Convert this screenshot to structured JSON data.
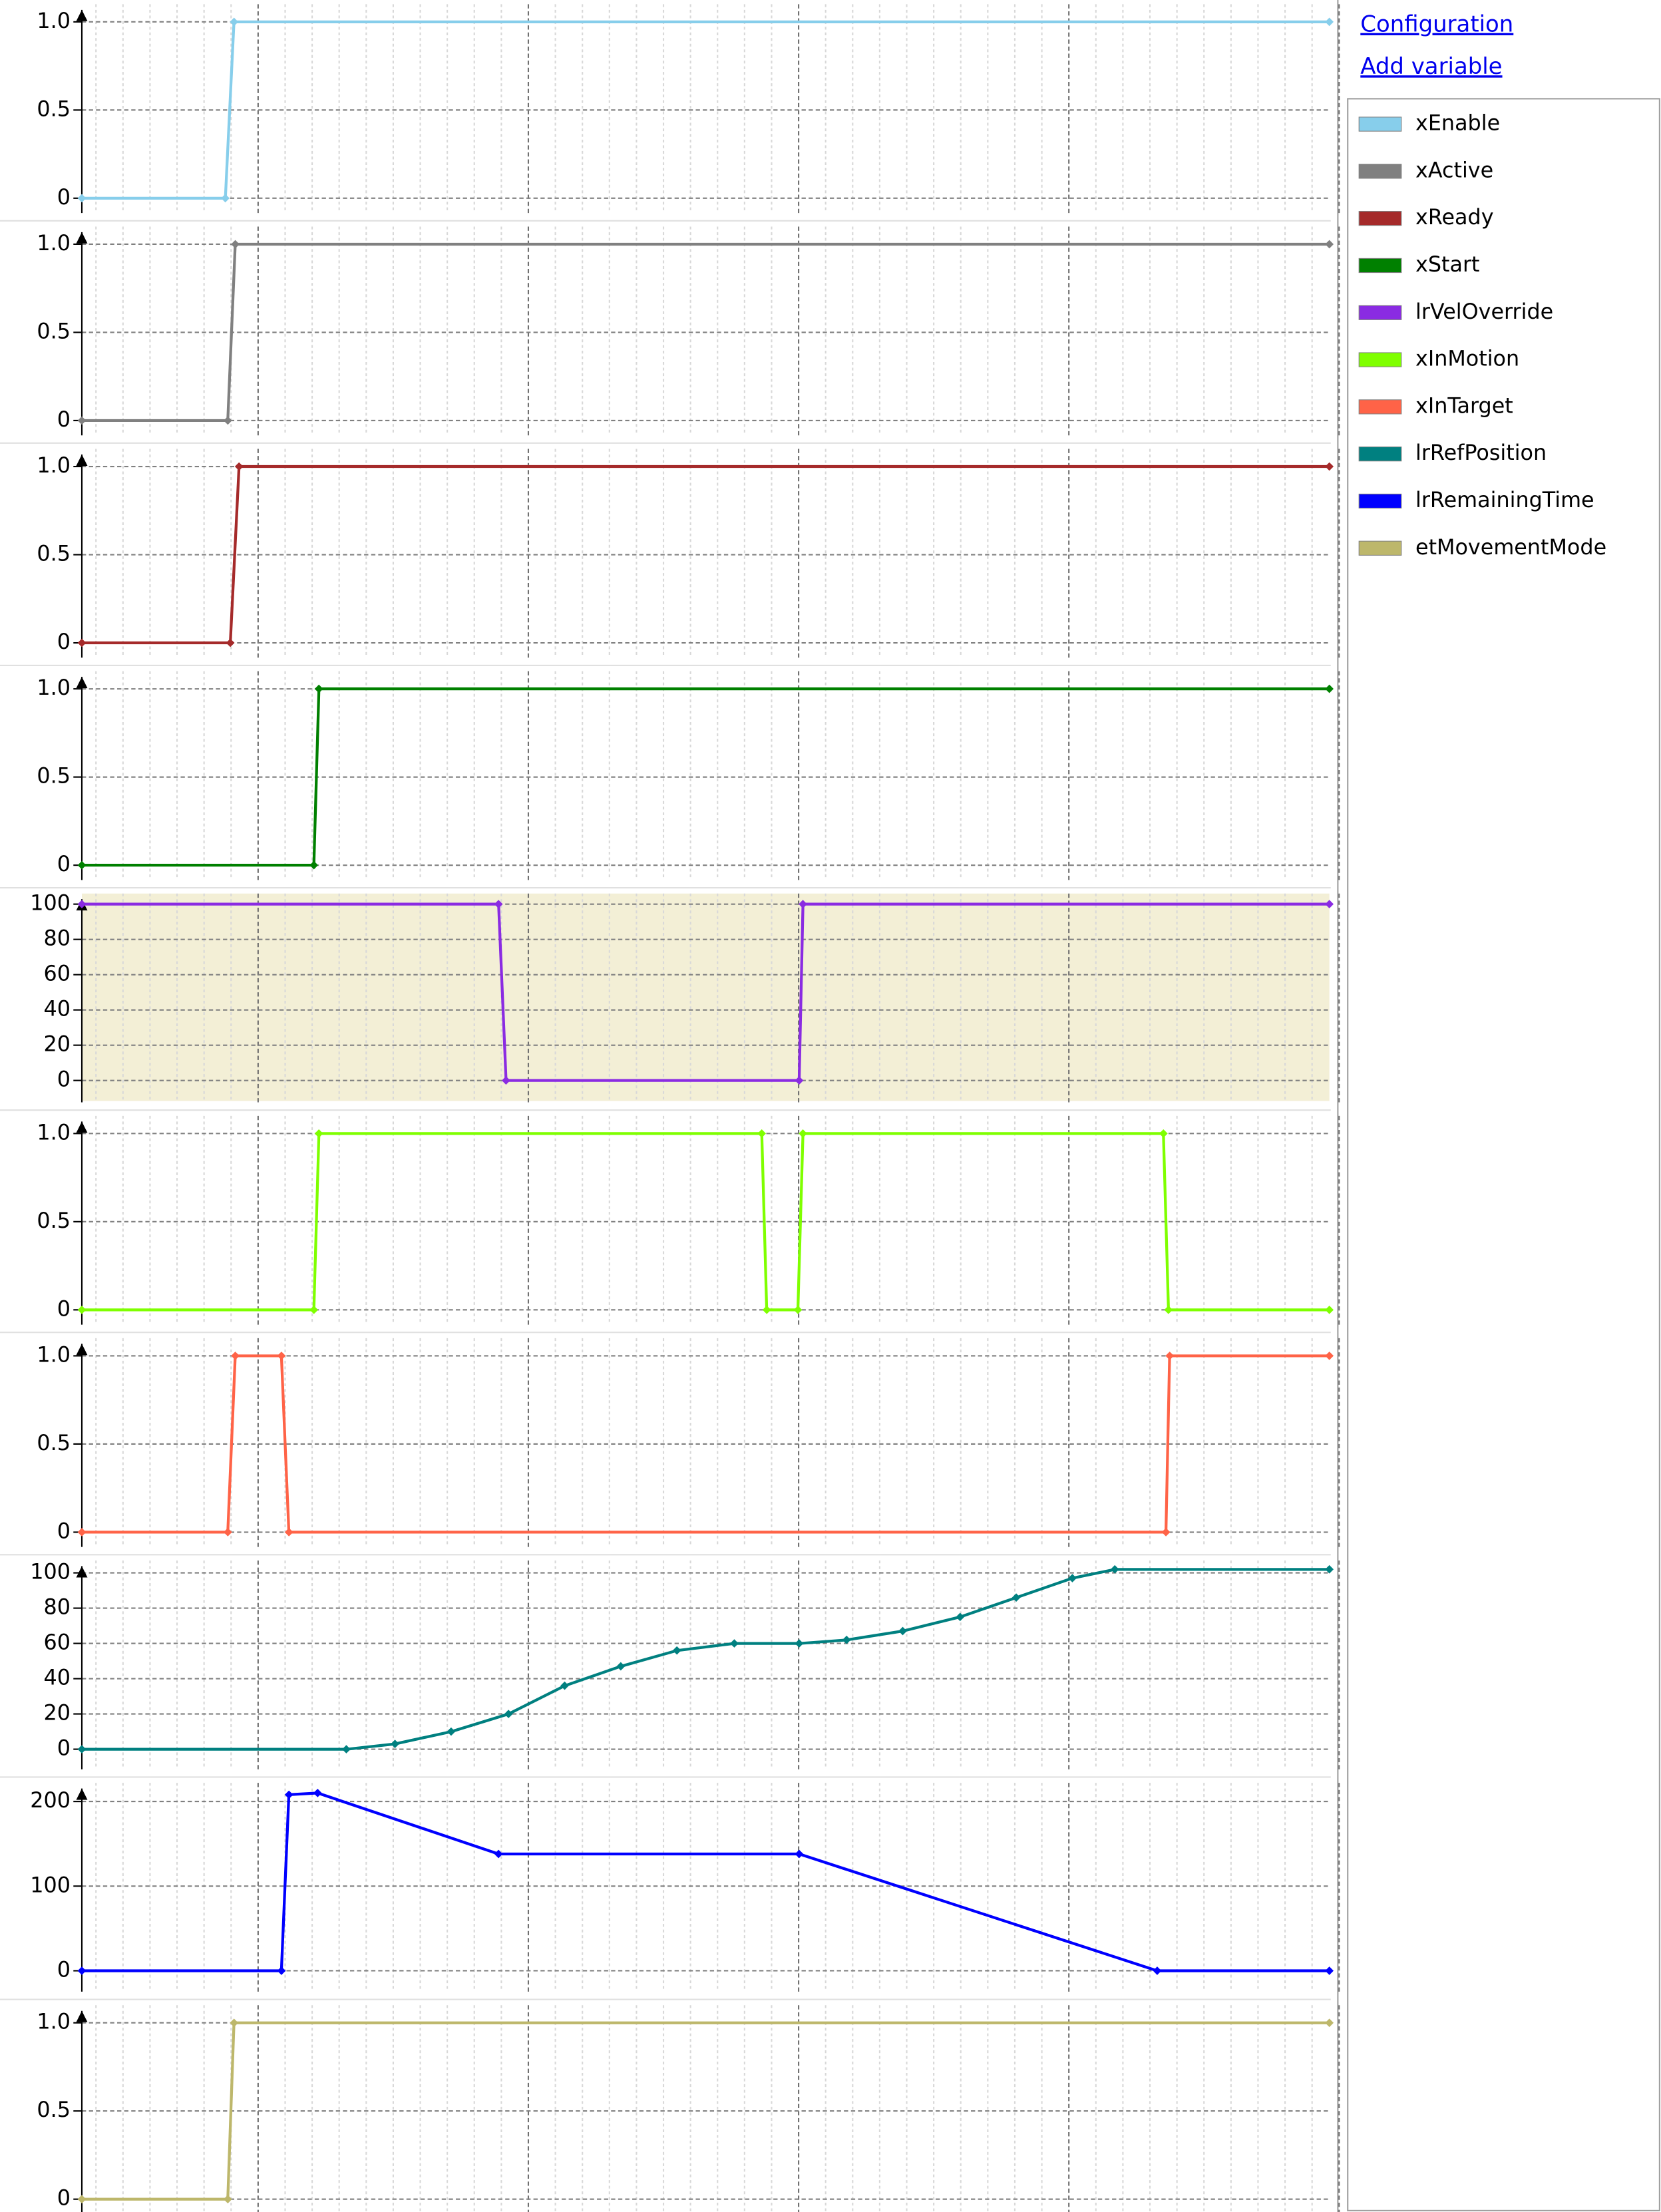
{
  "links": [
    "Configuration",
    "Add variable"
  ],
  "chart_data": [
    {
      "type": "line",
      "xlim": [
        0,
        100
      ],
      "x": [
        0,
        11.5,
        12.2,
        100
      ],
      "ylim": [
        -0.1,
        1.1
      ],
      "yticks": [
        0,
        0.5,
        {
          "value": 1,
          "label": "1.0"
        }
      ],
      "series": [
        {
          "name": "xEnable",
          "color": "#87ceeb",
          "values": [
            0,
            0,
            1,
            1
          ]
        }
      ]
    },
    {
      "type": "line",
      "xlim": [
        0,
        100
      ],
      "x": [
        0,
        11.7,
        12.3,
        100
      ],
      "ylim": [
        -0.1,
        1.1
      ],
      "yticks": [
        0,
        0.5,
        {
          "value": 1,
          "label": "1.0"
        }
      ],
      "series": [
        {
          "name": "xActive",
          "color": "#808080",
          "values": [
            0,
            0,
            1,
            1
          ]
        }
      ]
    },
    {
      "type": "line",
      "xlim": [
        0,
        100
      ],
      "x": [
        0,
        11.9,
        12.6,
        100
      ],
      "ylim": [
        -0.1,
        1.1
      ],
      "yticks": [
        0,
        0.5,
        {
          "value": 1,
          "label": "1.0"
        }
      ],
      "series": [
        {
          "name": "xReady",
          "color": "#a52a2a",
          "values": [
            0,
            0,
            1,
            1
          ]
        }
      ]
    },
    {
      "type": "line",
      "xlim": [
        0,
        100
      ],
      "x": [
        0,
        18.6,
        19.0,
        100
      ],
      "ylim": [
        -0.1,
        1.1
      ],
      "yticks": [
        0,
        0.5,
        {
          "value": 1,
          "label": "1.0"
        }
      ],
      "series": [
        {
          "name": "xStart",
          "color": "#008000",
          "values": [
            0,
            0,
            1,
            1
          ]
        }
      ]
    },
    {
      "type": "line",
      "xlim": [
        0,
        100
      ],
      "x": [
        0,
        33.4,
        34.0,
        57.5,
        57.8,
        100
      ],
      "ylim": [
        -14,
        106
      ],
      "yticks": [
        0,
        20,
        40,
        60,
        80,
        100
      ],
      "series": [
        {
          "name": "lrVelOverride",
          "color": "#8a2be2",
          "values": [
            100,
            100,
            0,
            0,
            100,
            100
          ]
        }
      ]
    },
    {
      "type": "line",
      "xlim": [
        0,
        100
      ],
      "x": [
        0,
        18.6,
        19.0,
        54.5,
        54.9,
        57.4,
        57.8,
        86.7,
        87.1,
        100
      ],
      "ylim": [
        -0.1,
        1.1
      ],
      "yticks": [
        0,
        0.5,
        {
          "value": 1,
          "label": "1.0"
        }
      ],
      "series": [
        {
          "name": "xInMotion",
          "color": "#7fff00",
          "values": [
            0,
            0,
            1,
            1,
            0,
            0,
            1,
            1,
            0,
            0
          ]
        }
      ]
    },
    {
      "type": "line",
      "xlim": [
        0,
        100
      ],
      "x": [
        0,
        11.7,
        12.3,
        16.0,
        16.6,
        86.9,
        87.2,
        100
      ],
      "ylim": [
        -0.1,
        1.1
      ],
      "yticks": [
        0,
        0.5,
        {
          "value": 1,
          "label": "1.0"
        }
      ],
      "series": [
        {
          "name": "xInTarget",
          "color": "#ff6347",
          "values": [
            0,
            0,
            1,
            1,
            0,
            0,
            1,
            1
          ]
        }
      ]
    },
    {
      "type": "line",
      "xlim": [
        0,
        100
      ],
      "x": [
        0,
        21.2,
        25.1,
        29.6,
        34.2,
        38.7,
        43.2,
        47.7,
        52.3,
        57.5,
        61.3,
        65.8,
        70.4,
        74.9,
        79.4,
        82.8,
        100
      ],
      "ylim": [
        -13,
        107
      ],
      "yticks": [
        0,
        20,
        40,
        60,
        80,
        100
      ],
      "series": [
        {
          "name": "lrRefPosition",
          "color": "#008080",
          "values": [
            0,
            0,
            3,
            10,
            20,
            36,
            47,
            56,
            60,
            60,
            62,
            67,
            75,
            86,
            97,
            102,
            102
          ]
        }
      ]
    },
    {
      "type": "line",
      "xlim": [
        0,
        100
      ],
      "x": [
        0,
        16.0,
        16.6,
        18.9,
        33.4,
        57.5,
        86.2,
        100
      ],
      "ylim": [
        -28,
        222
      ],
      "yticks": [
        0,
        100,
        200
      ],
      "series": [
        {
          "name": "lrRemainingTime",
          "color": "#0000ff",
          "values": [
            0,
            0,
            208,
            210,
            138,
            138,
            0,
            0
          ]
        }
      ]
    },
    {
      "type": "line",
      "xlim": [
        0,
        100
      ],
      "x": [
        0,
        11.7,
        12.2,
        100
      ],
      "ylim": [
        -0.1,
        1.1
      ],
      "yticks": [
        0,
        0.5,
        {
          "value": 1,
          "label": "1.0"
        }
      ],
      "series": [
        {
          "name": "etMovementMode",
          "color": "#bdb76b",
          "values": [
            0,
            0,
            1,
            1
          ]
        }
      ]
    }
  ]
}
